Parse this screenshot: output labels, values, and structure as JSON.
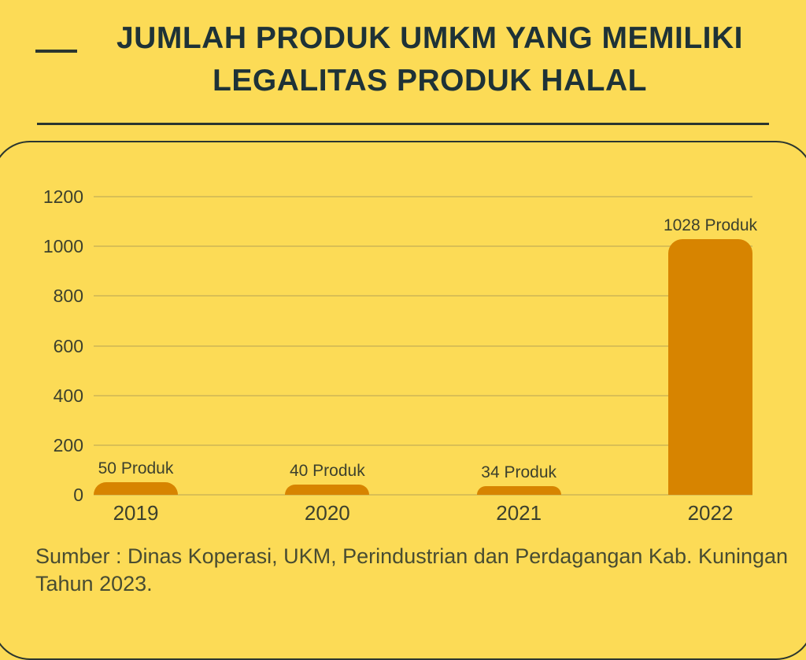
{
  "header": {
    "title_line1": "JUMLAH PRODUK UMKM YANG MEMILIKI",
    "title_line2": "LEGALITAS PRODUK HALAL"
  },
  "footer": {
    "source_line1": "Sumber : Dinas Koperasi, UKM, Perindustrian dan Perdagangan Kab. Kuningan",
    "source_line2": "Tahun 2023."
  },
  "colors": {
    "background": "#FCDB56",
    "bar": "#D78400",
    "title_text": "#1E3237",
    "label_text": "#3C402D",
    "source_text": "#484C32",
    "line_dark": "#2B362F",
    "gridline": "#D9BF55"
  },
  "chart_data": {
    "type": "bar",
    "title": "JUMLAH PRODUK UMKM YANG MEMILIKI LEGALITAS PRODUK HALAL",
    "categories": [
      "2019",
      "2020",
      "2021",
      "2022"
    ],
    "values": [
      50,
      40,
      34,
      1028
    ],
    "value_labels": [
      "50 Produk",
      "40 Produk",
      "34 Produk",
      "1028 Produk"
    ],
    "ylim": [
      0,
      1200
    ],
    "yticks": [
      0,
      200,
      400,
      600,
      800,
      1000,
      1200
    ],
    "grid": true,
    "legend": false,
    "bar_color": "#D78400",
    "source": "Sumber : Dinas Koperasi, UKM, Perindustrian dan Perdagangan Kab. Kuningan Tahun 2023."
  }
}
